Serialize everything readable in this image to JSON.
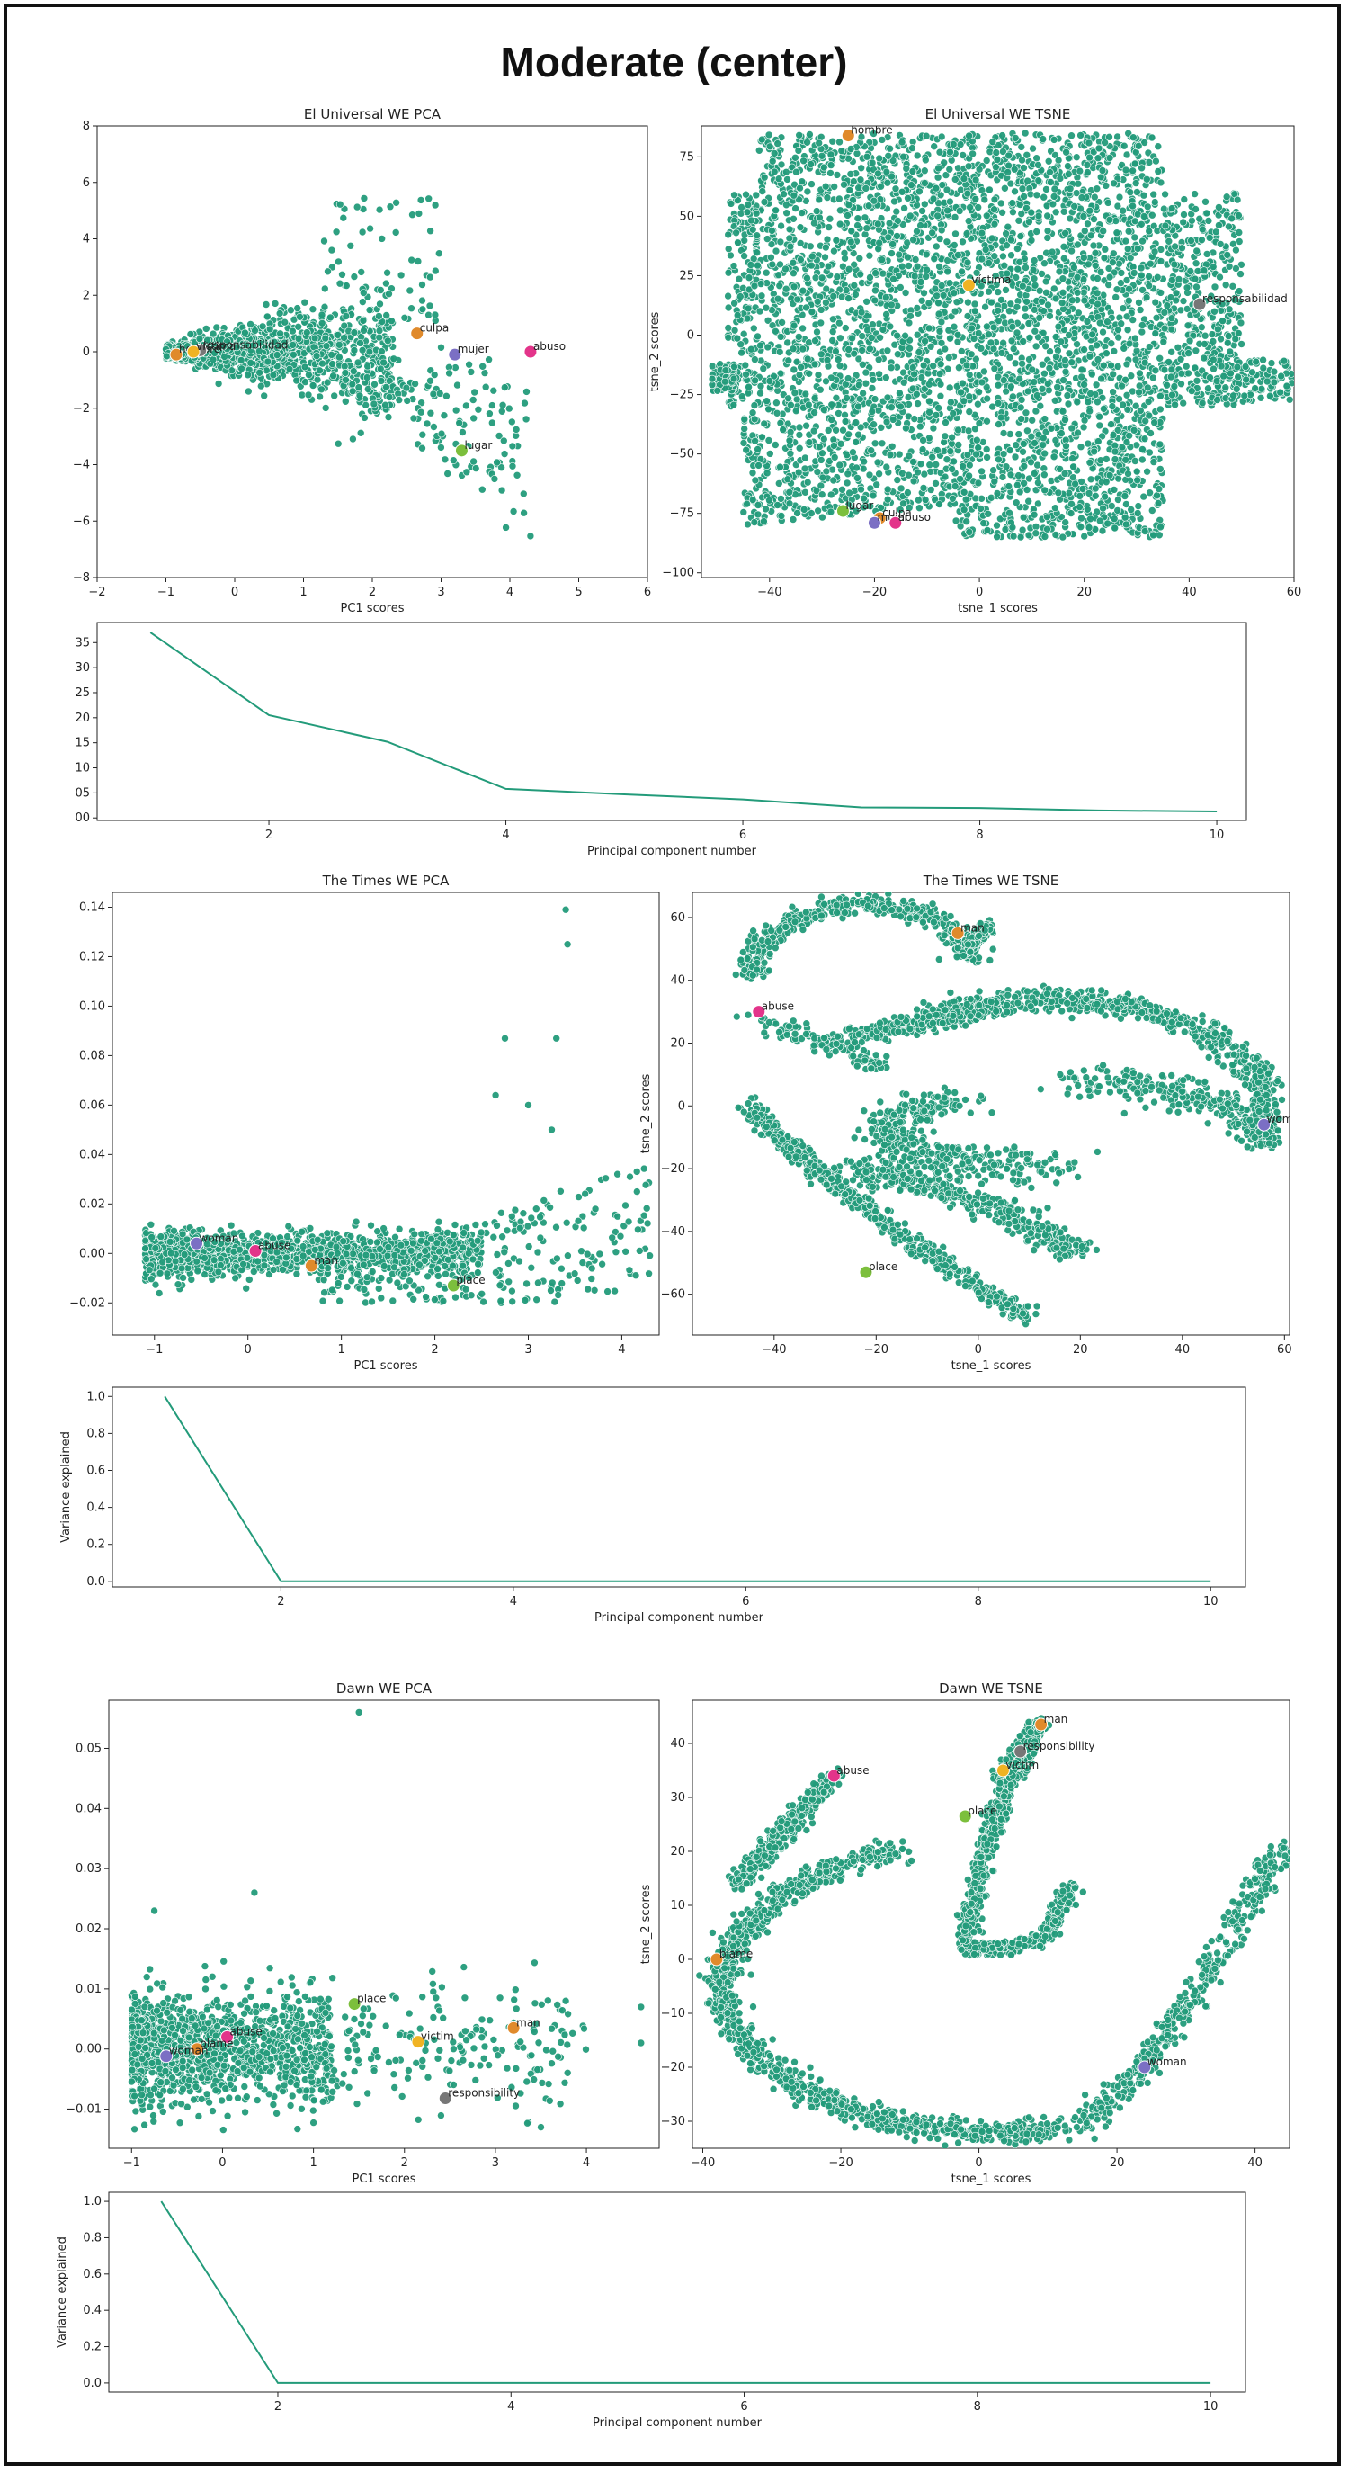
{
  "page": {
    "title": "Moderate (center)"
  },
  "colors": {
    "point": "#239b7a",
    "line": "#239b7a"
  },
  "chart_data": [
    {
      "id": "eu-pca",
      "type": "scatter",
      "title": "El Universal WE PCA",
      "xlabel": "PC1 scores",
      "ylabel": "",
      "xlim": [
        -2,
        6
      ],
      "ylim": [
        -8,
        8
      ],
      "xticks": [
        -2,
        -1,
        0,
        1,
        2,
        3,
        4,
        5,
        6
      ],
      "yticks": [
        -8,
        -6,
        -4,
        -2,
        0,
        2,
        4,
        6,
        8
      ],
      "cloud": {
        "shape": "cone",
        "n": 1500,
        "x_range": [
          -1,
          4.3
        ],
        "note": "dense cloud near y=0, widening to the right"
      },
      "highlights": [
        {
          "label": "culpa",
          "x": 2.65,
          "y": 0.65,
          "color": "#e08a2b"
        },
        {
          "label": "mujer",
          "x": 3.2,
          "y": -0.1,
          "color": "#7b6fc4"
        },
        {
          "label": "abuso",
          "x": 4.3,
          "y": 0.0,
          "color": "#e3348a"
        },
        {
          "label": "lugar",
          "x": 3.3,
          "y": -3.5,
          "color": "#7cbf3c"
        },
        {
          "label": "hombre",
          "x": -0.85,
          "y": -0.1,
          "color": "#e08a2b"
        },
        {
          "label": "responsabilidad",
          "x": -0.5,
          "y": 0.05,
          "color": "#777777"
        },
        {
          "label": "víctima",
          "x": -0.6,
          "y": 0.0,
          "color": "#f0b323"
        }
      ]
    },
    {
      "id": "eu-tsne",
      "type": "scatter",
      "title": "El Universal WE TSNE",
      "xlabel": "tsne_1 scores",
      "ylabel": "tsne_2 scores",
      "xlim": [
        -53,
        60
      ],
      "ylim": [
        -102,
        88
      ],
      "xticks": [
        -40,
        -20,
        0,
        20,
        40,
        60
      ],
      "yticks": [
        -100,
        -75,
        -50,
        -25,
        0,
        25,
        50,
        75
      ],
      "cloud": {
        "shape": "blob",
        "n": 5000
      },
      "highlights": [
        {
          "label": "hombre",
          "x": -25,
          "y": 84,
          "color": "#e08a2b"
        },
        {
          "label": "víctima",
          "x": -2,
          "y": 21,
          "color": "#f0b323"
        },
        {
          "label": "responsabilidad",
          "x": 42,
          "y": 13,
          "color": "#777777"
        },
        {
          "label": "lugar",
          "x": -26,
          "y": -74,
          "color": "#7cbf3c"
        },
        {
          "label": "culpa",
          "x": -19,
          "y": -77,
          "color": "#e08a2b"
        },
        {
          "label": "mujer",
          "x": -20,
          "y": -79,
          "color": "#7b6fc4"
        },
        {
          "label": "abuso",
          "x": -16,
          "y": -79,
          "color": "#e3348a"
        }
      ]
    },
    {
      "id": "eu-var",
      "type": "line",
      "title": "",
      "xlabel": "Principal component number",
      "ylabel": "",
      "xlim": [
        0.55,
        10.25
      ],
      "ylim": [
        -0.5,
        39
      ],
      "xticks": [
        2,
        4,
        6,
        8,
        10
      ],
      "yticks": [
        0,
        5,
        10,
        15,
        20,
        25,
        30,
        35
      ],
      "ytick_labels": [
        "00",
        "05",
        "10",
        "15",
        "20",
        "25",
        "30",
        "35"
      ],
      "x": [
        1,
        2,
        3,
        4,
        5,
        6,
        7,
        8,
        9,
        10
      ],
      "values": [
        37,
        20.5,
        15.2,
        5.8,
        4.7,
        3.7,
        2.1,
        2.0,
        1.5,
        1.3
      ]
    },
    {
      "id": "tt-pca",
      "type": "scatter",
      "title": "The Times WE PCA",
      "xlabel": "PC1 scores",
      "ylabel": "",
      "xlim": [
        -1.45,
        4.4
      ],
      "ylim": [
        -0.033,
        0.146
      ],
      "xticks": [
        -1,
        0,
        1,
        2,
        3,
        4
      ],
      "yticks": [
        -0.02,
        0.0,
        0.02,
        0.04,
        0.06,
        0.08,
        0.1,
        0.12,
        0.14
      ],
      "ytick_labels": [
        "−0.02",
        "0.00",
        "0.02",
        "0.04",
        "0.06",
        "0.08",
        "0.10",
        "0.12",
        "0.14"
      ],
      "cloud": {
        "shape": "band",
        "n": 1600,
        "x_range": [
          -1.1,
          4.3
        ]
      },
      "highlights": [
        {
          "label": "woman",
          "x": -0.55,
          "y": 0.004,
          "color": "#7b6fc4"
        },
        {
          "label": "abuse",
          "x": 0.08,
          "y": 0.001,
          "color": "#e3348a"
        },
        {
          "label": "man",
          "x": 0.68,
          "y": -0.005,
          "color": "#e08a2b"
        },
        {
          "label": "place",
          "x": 2.2,
          "y": -0.013,
          "color": "#7cbf3c"
        }
      ]
    },
    {
      "id": "tt-tsne",
      "type": "scatter",
      "title": "The Times WE TSNE",
      "xlabel": "tsne_1 scores",
      "ylabel": "tsne_2 scores",
      "xlim": [
        -56,
        61
      ],
      "ylim": [
        -73,
        68
      ],
      "xticks": [
        -40,
        -20,
        0,
        20,
        40,
        60
      ],
      "yticks": [
        -60,
        -40,
        -20,
        0,
        20,
        40,
        60
      ],
      "cloud": {
        "shape": "curves",
        "n": 3000
      },
      "highlights": [
        {
          "label": "man",
          "x": -4,
          "y": 55,
          "color": "#e08a2b"
        },
        {
          "label": "abuse",
          "x": -43,
          "y": 30,
          "color": "#e3348a"
        },
        {
          "label": "woman",
          "x": 56,
          "y": -6,
          "color": "#7b6fc4"
        },
        {
          "label": "place",
          "x": -22,
          "y": -53,
          "color": "#7cbf3c"
        }
      ]
    },
    {
      "id": "tt-var",
      "type": "line",
      "title": "",
      "xlabel": "Principal component number",
      "ylabel": "Variance explained",
      "xlim": [
        0.55,
        10.3
      ],
      "ylim": [
        -0.03,
        1.05
      ],
      "xticks": [
        2,
        4,
        6,
        8,
        10
      ],
      "yticks": [
        0.0,
        0.2,
        0.4,
        0.6,
        0.8,
        1.0
      ],
      "ytick_labels": [
        "0.0",
        "0.2",
        "0.4",
        "0.6",
        "0.8",
        "1.0"
      ],
      "x": [
        1,
        2,
        3,
        4,
        5,
        6,
        7,
        8,
        9,
        10
      ],
      "values": [
        1.0,
        0.0,
        0.0,
        0.0,
        0.0,
        0.0,
        0.0,
        0.0,
        0.0,
        0.0
      ]
    },
    {
      "id": "dn-pca",
      "type": "scatter",
      "title": "Dawn WE PCA",
      "xlabel": "PC1 scores",
      "ylabel": "",
      "xlim": [
        -1.25,
        4.8
      ],
      "ylim": [
        -0.0165,
        0.058
      ],
      "xticks": [
        -1,
        0,
        1,
        2,
        3,
        4
      ],
      "yticks": [
        -0.01,
        0.0,
        0.01,
        0.02,
        0.03,
        0.04,
        0.05
      ],
      "ytick_labels": [
        "−0.01",
        "0.00",
        "0.01",
        "0.02",
        "0.03",
        "0.04",
        "0.05"
      ],
      "cloud": {
        "shape": "band-small",
        "n": 1400,
        "x_range": [
          -1.0,
          4.6
        ]
      },
      "highlights": [
        {
          "label": "place",
          "x": 1.45,
          "y": 0.0075,
          "color": "#7cbf3c"
        },
        {
          "label": "man",
          "x": 3.2,
          "y": 0.0035,
          "color": "#e08a2b"
        },
        {
          "label": "abuse",
          "x": 0.05,
          "y": 0.002,
          "color": "#e3348a"
        },
        {
          "label": "victim",
          "x": 2.15,
          "y": 0.0012,
          "color": "#f0b323"
        },
        {
          "label": "blame",
          "x": -0.28,
          "y": 0.0,
          "color": "#e08a2b"
        },
        {
          "label": "woman",
          "x": -0.62,
          "y": -0.0012,
          "color": "#7b6fc4"
        },
        {
          "label": "responsibility",
          "x": 2.45,
          "y": -0.0082,
          "color": "#777777"
        }
      ]
    },
    {
      "id": "dn-tsne",
      "type": "scatter",
      "title": "Dawn WE TSNE",
      "xlabel": "tsne_1 scores",
      "ylabel": "tsne_2 scores",
      "xlim": [
        -41.5,
        45
      ],
      "ylim": [
        -35,
        48
      ],
      "xticks": [
        -40,
        -20,
        0,
        20,
        40
      ],
      "yticks": [
        -30,
        -20,
        -10,
        0,
        10,
        20,
        30,
        40
      ],
      "cloud": {
        "shape": "spiral",
        "n": 3000
      },
      "highlights": [
        {
          "label": "man",
          "x": 9,
          "y": 43.5,
          "color": "#e08a2b"
        },
        {
          "label": "responsibility",
          "x": 6,
          "y": 38.5,
          "color": "#777777"
        },
        {
          "label": "victim",
          "x": 3.5,
          "y": 35,
          "color": "#f0b323"
        },
        {
          "label": "abuse",
          "x": -21,
          "y": 34,
          "color": "#e3348a"
        },
        {
          "label": "place",
          "x": -2,
          "y": 26.5,
          "color": "#7cbf3c"
        },
        {
          "label": "blame",
          "x": -38,
          "y": 0,
          "color": "#e08a2b"
        },
        {
          "label": "woman",
          "x": 24,
          "y": -20,
          "color": "#7b6fc4"
        }
      ]
    },
    {
      "id": "dn-var",
      "type": "line",
      "title": "",
      "xlabel": "Principal component number",
      "ylabel": "Variance explained",
      "xlim": [
        0.55,
        10.3
      ],
      "ylim": [
        -0.05,
        1.05
      ],
      "xticks": [
        2,
        4,
        6,
        8,
        10
      ],
      "yticks": [
        0.0,
        0.2,
        0.4,
        0.6,
        0.8,
        1.0
      ],
      "ytick_labels": [
        "0.0",
        "0.2",
        "0.4",
        "0.6",
        "0.8",
        "1.0"
      ],
      "x": [
        1,
        2,
        3,
        4,
        5,
        6,
        7,
        8,
        9,
        10
      ],
      "values": [
        1.0,
        0.0,
        0.0,
        0.0,
        0.0,
        0.0,
        0.0,
        0.0,
        0.0,
        0.0
      ]
    }
  ]
}
